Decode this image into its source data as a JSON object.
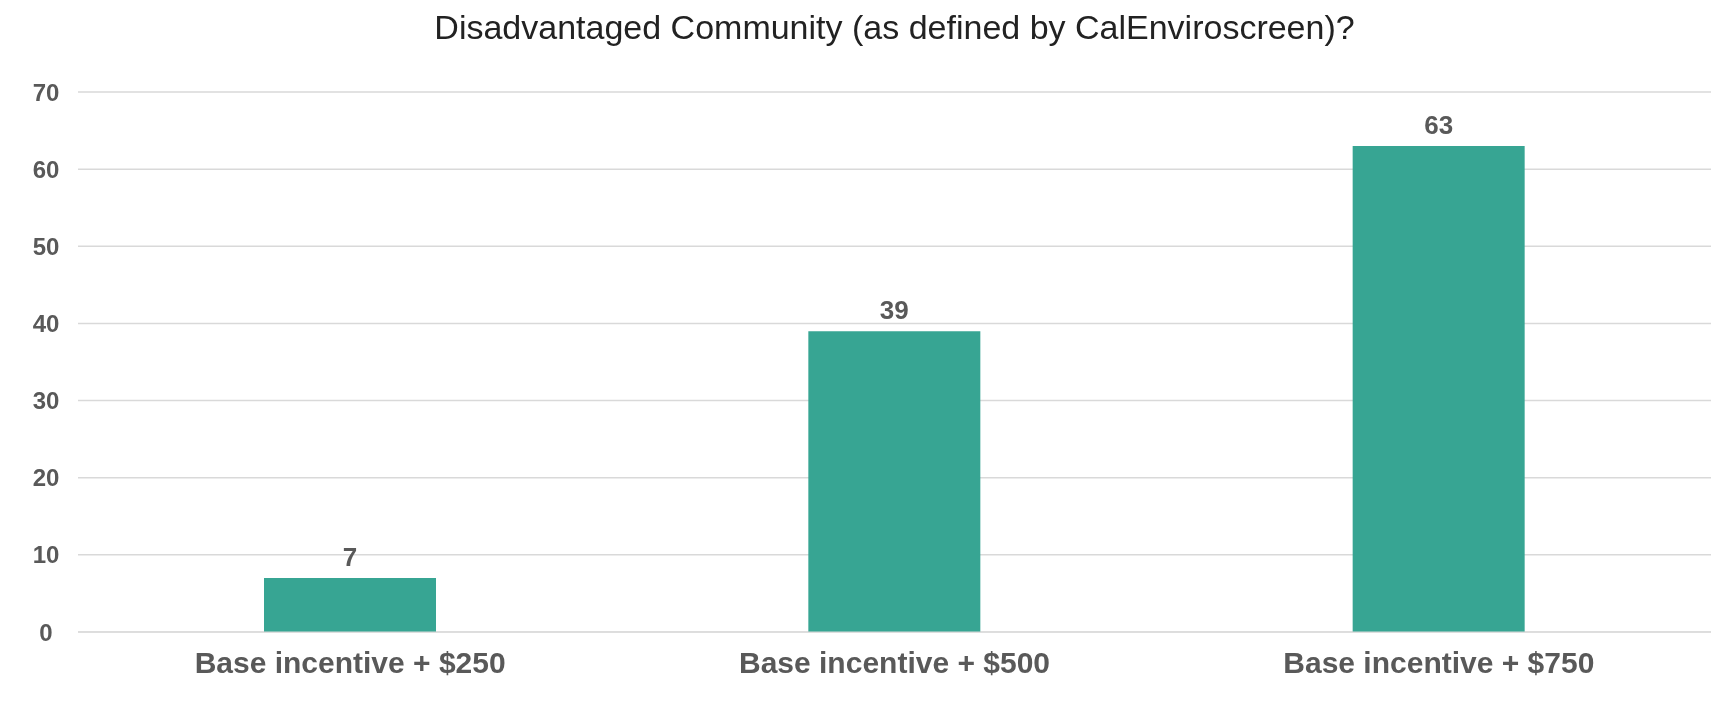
{
  "chart_data": {
    "type": "bar",
    "title": "Disadvantaged Community (as defined by CalEnviroscreen)?",
    "categories": [
      "Base incentive + $250",
      "Base incentive + $500",
      "Base incentive + $750"
    ],
    "values": [
      7,
      39,
      63
    ],
    "color": "#37a593",
    "ylim": [
      0,
      70
    ],
    "yticks": [
      0,
      10,
      20,
      30,
      40,
      50,
      60,
      70
    ],
    "grid": "y",
    "data_labels": true
  }
}
